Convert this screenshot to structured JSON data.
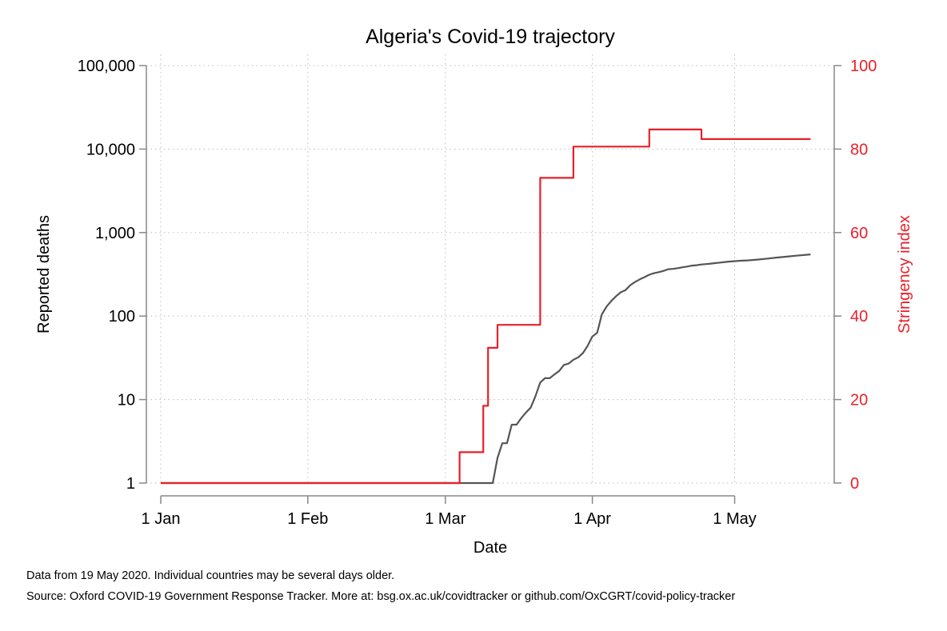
{
  "chart_data": {
    "type": "line",
    "title": "Algeria's Covid-19 trajectory",
    "xlabel": "Date",
    "ylabel_left": "Reported deaths",
    "ylabel_right": "Stringency index",
    "x_ticks": [
      {
        "label": "1 Jan",
        "day": 0
      },
      {
        "label": "1 Feb",
        "day": 31
      },
      {
        "label": "1 Mar",
        "day": 60
      },
      {
        "label": "1 Apr",
        "day": 91
      },
      {
        "label": "1 May",
        "day": 121
      }
    ],
    "left_axis": {
      "scale": "log",
      "range": [
        1,
        100000
      ],
      "ticks": [
        {
          "label": "1",
          "value": 1
        },
        {
          "label": "10",
          "value": 10
        },
        {
          "label": "100",
          "value": 100
        },
        {
          "label": "1,000",
          "value": 1000
        },
        {
          "label": "10,000",
          "value": 10000
        },
        {
          "label": "100,000",
          "value": 100000
        }
      ]
    },
    "right_axis": {
      "scale": "linear",
      "range": [
        0,
        100
      ],
      "ticks": [
        "0",
        "20",
        "40",
        "60",
        "80",
        "100"
      ],
      "color": "#e8202a"
    },
    "grid": true,
    "series": [
      {
        "color": "#555555",
        "axis": "left",
        "points": [
          [
            "2020-01-01",
            1
          ],
          [
            "2020-03-11",
            1
          ],
          [
            "2020-03-12",
            2
          ],
          [
            "2020-03-13",
            3
          ],
          [
            "2020-03-14",
            3
          ],
          [
            "2020-03-15",
            5
          ],
          [
            "2020-03-16",
            5
          ],
          [
            "2020-03-17",
            6
          ],
          [
            "2020-03-18",
            7
          ],
          [
            "2020-03-19",
            8
          ],
          [
            "2020-03-20",
            11
          ],
          [
            "2020-03-21",
            16
          ],
          [
            "2020-03-22",
            18
          ],
          [
            "2020-03-23",
            18
          ],
          [
            "2020-03-24",
            20
          ],
          [
            "2020-03-25",
            22
          ],
          [
            "2020-03-26",
            26
          ],
          [
            "2020-03-27",
            27
          ],
          [
            "2020-03-28",
            30
          ],
          [
            "2020-03-29",
            32
          ],
          [
            "2020-03-30",
            36
          ],
          [
            "2020-03-31",
            44
          ],
          [
            "2020-04-01",
            57
          ],
          [
            "2020-04-02",
            63
          ],
          [
            "2020-04-03",
            105
          ],
          [
            "2020-04-04",
            130
          ],
          [
            "2020-04-05",
            152
          ],
          [
            "2020-04-06",
            173
          ],
          [
            "2020-04-07",
            193
          ],
          [
            "2020-04-08",
            205
          ],
          [
            "2020-04-09",
            235
          ],
          [
            "2020-04-10",
            256
          ],
          [
            "2020-04-11",
            275
          ],
          [
            "2020-04-12",
            293
          ],
          [
            "2020-04-13",
            313
          ],
          [
            "2020-04-14",
            326
          ],
          [
            "2020-04-15",
            336
          ],
          [
            "2020-04-16",
            348
          ],
          [
            "2020-04-17",
            364
          ],
          [
            "2020-04-18",
            367
          ],
          [
            "2020-04-19",
            375
          ],
          [
            "2020-04-20",
            384
          ],
          [
            "2020-04-21",
            392
          ],
          [
            "2020-04-22",
            402
          ],
          [
            "2020-04-23",
            407
          ],
          [
            "2020-04-24",
            415
          ],
          [
            "2020-04-25",
            419
          ],
          [
            "2020-04-26",
            425
          ],
          [
            "2020-04-27",
            432
          ],
          [
            "2020-04-28",
            437
          ],
          [
            "2020-04-29",
            444
          ],
          [
            "2020-04-30",
            450
          ],
          [
            "2020-05-02",
            459
          ],
          [
            "2020-05-04",
            465
          ],
          [
            "2020-05-06",
            476
          ],
          [
            "2020-05-08",
            488
          ],
          [
            "2020-05-10",
            502
          ],
          [
            "2020-05-12",
            515
          ],
          [
            "2020-05-14",
            529
          ],
          [
            "2020-05-17",
            548
          ]
        ]
      },
      {
        "color": "#e8202a",
        "axis": "right",
        "step": true,
        "points": [
          [
            "2020-01-01",
            0
          ],
          [
            "2020-03-04",
            7.4
          ],
          [
            "2020-03-09",
            18.5
          ],
          [
            "2020-03-10",
            32.4
          ],
          [
            "2020-03-12",
            37.9
          ],
          [
            "2020-03-21",
            73.1
          ],
          [
            "2020-03-28",
            80.6
          ],
          [
            "2020-04-13",
            84.7
          ],
          [
            "2020-04-24",
            82.4
          ],
          [
            "2020-05-17",
            82.4
          ]
        ]
      }
    ]
  },
  "notes": {
    "line1": "Data from 19 May 2020. Individual countries may be several days older.",
    "line2": "Source: Oxford COVID-19 Government Response Tracker. More at: bsg.ox.ac.uk/covidtracker or github.com/OxCGRT/covid-policy-tracker"
  }
}
